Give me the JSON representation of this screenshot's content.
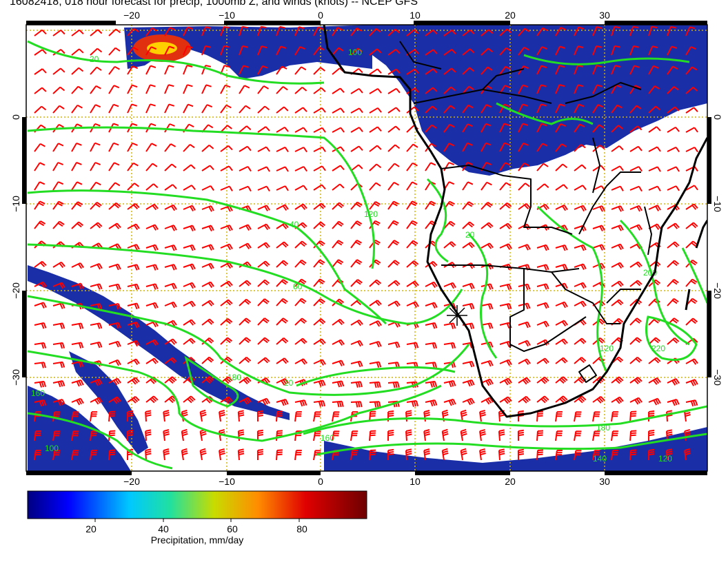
{
  "title": "16082418, 018 hour forecast for precip, 1000mb Z, and winds (knots) -- NCEP GFS",
  "map": {
    "lon_range": [
      -30,
      41
    ],
    "lat_range": [
      -39.5,
      10
    ],
    "lon_ticks": [
      -20,
      -10,
      0,
      10,
      20,
      30
    ],
    "lat_ticks": [
      0,
      -10,
      -20,
      -30
    ],
    "lon_tick_labels": [
      "−20",
      "−10",
      "0",
      "10",
      "20",
      "30"
    ],
    "lat_tick_labels": [
      "0",
      "−10",
      "−20",
      "−30"
    ],
    "grid": true,
    "colors": {
      "wind_barbs": "#ff0000",
      "contours": "#22dd22",
      "coastline": "#000000",
      "grid": "#d4b400",
      "precip_main": "#1428b4"
    },
    "contour_labels": [
      "20",
      "40",
      "60",
      "100",
      "120",
      "140",
      "160",
      "180",
      "200",
      "220"
    ],
    "marker": {
      "icon": "star-marker-icon",
      "lon": 14.5,
      "lat": -23
    }
  },
  "colorbar": {
    "label": "Precipitation, mm/day",
    "range": [
      0,
      100
    ],
    "ticks": [
      "20",
      "40",
      "60",
      "80"
    ]
  }
}
